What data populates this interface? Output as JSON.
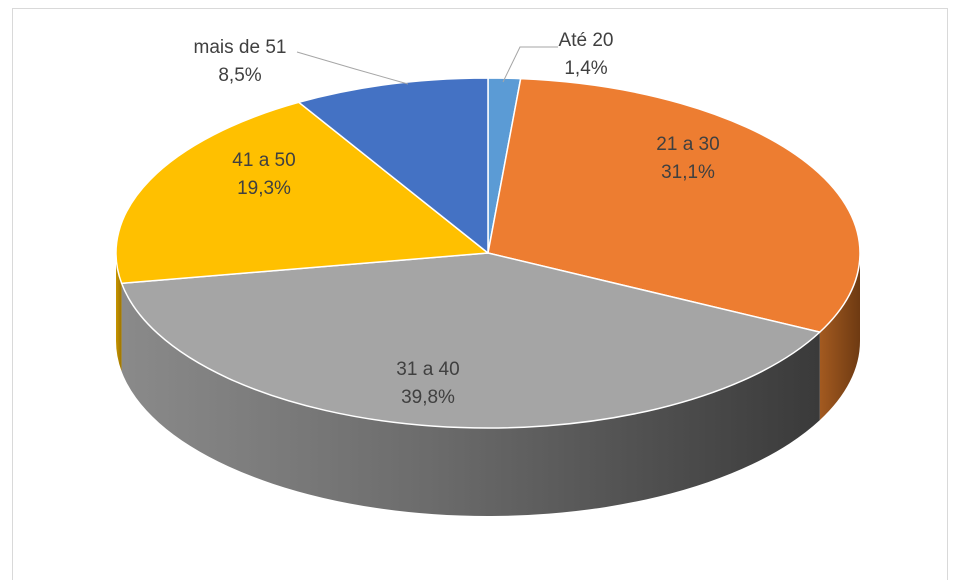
{
  "chart_data": {
    "type": "pie",
    "style": "3d",
    "title": "",
    "slices": [
      {
        "label": "Até 20",
        "value": 1.4,
        "display": "1,4%",
        "color": "#5B9BD5"
      },
      {
        "label": "21 a 30",
        "value": 31.1,
        "display": "31,1%",
        "color": "#ED7D31"
      },
      {
        "label": "31 a 40",
        "value": 39.8,
        "display": "39,8%",
        "color": "#A5A5A5"
      },
      {
        "label": "41 a 50",
        "value": 19.3,
        "display": "19,3%",
        "color": "#FFC000"
      },
      {
        "label": "mais de 51",
        "value": 8.5,
        "display": "8,5%",
        "color": "#4472C4"
      }
    ],
    "legend": "none",
    "data_labels": "category and percent"
  }
}
